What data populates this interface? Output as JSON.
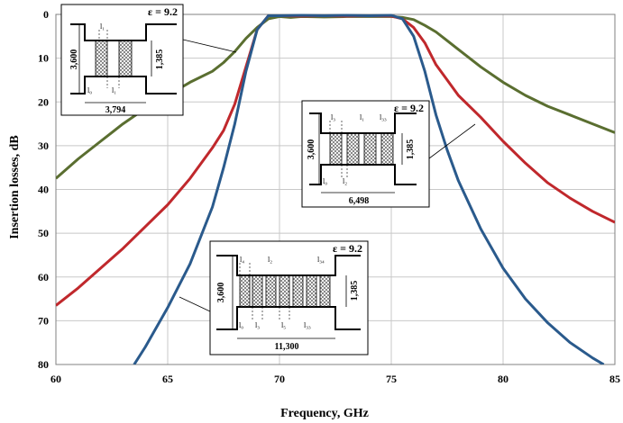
{
  "chart_data": {
    "type": "line",
    "xlabel": "Frequency, GHz",
    "ylabel": "Insertion losses, dB",
    "xlim": [
      60,
      85
    ],
    "ylim": [
      0,
      80
    ],
    "y_inverted": true,
    "grid": true,
    "xticks": [
      60,
      65,
      70,
      75,
      80,
      85
    ],
    "yticks": [
      0,
      10,
      20,
      30,
      40,
      50,
      60,
      70,
      80
    ],
    "series": [
      {
        "color": "#5a6e30",
        "x": [
          60,
          61,
          62,
          63,
          64,
          65,
          66,
          67,
          67.5,
          68,
          68.5,
          69,
          69.5,
          70,
          70.5,
          71,
          72,
          73,
          74,
          75,
          75.5,
          76,
          76.5,
          77,
          77.5,
          78,
          79,
          80,
          81,
          82,
          83,
          84,
          85
        ],
        "y": [
          37.5,
          33,
          29,
          25,
          21.5,
          18.5,
          15.5,
          13,
          11,
          8.5,
          5.5,
          3,
          1,
          0.5,
          0.7,
          0.5,
          0.6,
          0.5,
          0.5,
          0.5,
          0.7,
          1.2,
          2.5,
          4,
          6,
          8,
          12,
          15.5,
          18.5,
          21,
          23,
          25,
          27
        ]
      },
      {
        "color": "#c0282c",
        "x": [
          60,
          61,
          62,
          63,
          64,
          65,
          66,
          67,
          67.5,
          68,
          68.5,
          69,
          69.5,
          70,
          71,
          72,
          73,
          74,
          75,
          75.5,
          76,
          76.5,
          77,
          77.5,
          78,
          79,
          80,
          81,
          82,
          83,
          84,
          85
        ],
        "y": [
          66.5,
          62.5,
          58,
          53.5,
          48.5,
          43.5,
          37.5,
          30.5,
          26.5,
          20.5,
          12,
          3.5,
          0.3,
          0.3,
          0.4,
          0.3,
          0.4,
          0.3,
          0.4,
          1,
          3,
          6.5,
          11.5,
          15,
          18.5,
          23.5,
          29,
          34,
          38.5,
          42,
          45,
          47.5
        ]
      },
      {
        "color": "#2a5a8c",
        "x": [
          63.5,
          64,
          65,
          66,
          67,
          67.5,
          68,
          68.5,
          69,
          69.5,
          70,
          71,
          72,
          73,
          74,
          75,
          75.5,
          76,
          76.5,
          77,
          77.5,
          78,
          79,
          80,
          81,
          82,
          83,
          84,
          84.5
        ],
        "y": [
          80,
          76,
          67,
          57,
          44,
          35,
          25,
          13,
          3.5,
          0.3,
          0.3,
          0.2,
          0.3,
          0.2,
          0.3,
          0.2,
          1,
          5,
          13,
          23,
          31,
          38,
          49,
          58,
          65,
          70.5,
          75,
          78.5,
          80
        ]
      }
    ],
    "insets": [
      {
        "epsilon": "ε = 9.2",
        "labels": [
          "l₁",
          "l₀",
          "l₁",
          "3,600",
          "1,385",
          "3,794"
        ]
      },
      {
        "epsilon": "ε = 9.2",
        "labels": [
          "l₃",
          "l₁",
          "l₃₃",
          "l₀",
          "l₂",
          "3,600",
          "1,385",
          "6,498"
        ]
      },
      {
        "epsilon": "ε = 9.2",
        "labels": [
          "l₄",
          "l₂",
          "l₃₄",
          "l₀",
          "l₃",
          "l₅",
          "l₃₃",
          "3,600",
          "1,385",
          "11,300"
        ]
      }
    ]
  }
}
